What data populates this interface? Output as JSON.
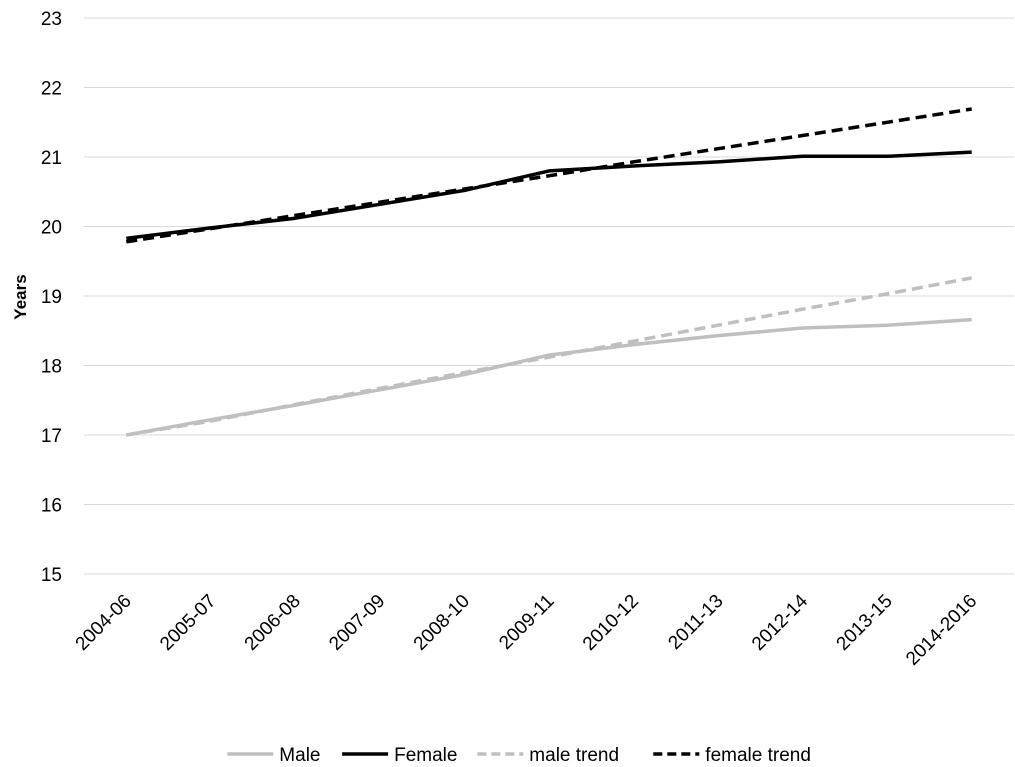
{
  "chart_data": {
    "type": "line",
    "title": "",
    "xlabel": "",
    "ylabel": "Years",
    "ylim": [
      15,
      23
    ],
    "yticks": [
      15,
      16,
      17,
      18,
      19,
      20,
      21,
      22,
      23
    ],
    "grid": true,
    "legend_position": "bottom",
    "categories": [
      "2004-06",
      "2005-07",
      "2006-08",
      "2007-09",
      "2008-10",
      "2009-11",
      "2010-12",
      "2011-13",
      "2012-14",
      "2013-15",
      "2014-2016"
    ],
    "series": [
      {
        "name": "Male",
        "color": "#bfbfbf",
        "dash": "solid",
        "values": [
          17.0,
          17.22,
          17.43,
          17.65,
          17.87,
          18.15,
          18.3,
          18.43,
          18.54,
          18.58,
          18.66
        ]
      },
      {
        "name": "Female",
        "color": "#000000",
        "dash": "solid",
        "values": [
          19.83,
          19.98,
          20.12,
          20.32,
          20.52,
          20.8,
          20.87,
          20.93,
          21.01,
          21.01,
          21.07
        ]
      },
      {
        "name": "male trend",
        "color": "#bfbfbf",
        "dash": "dashed",
        "values": [
          17.0,
          17.2,
          17.44,
          17.67,
          17.9,
          18.12,
          18.35,
          18.58,
          18.81,
          19.03,
          19.26
        ]
      },
      {
        "name": "female trend",
        "color": "#000000",
        "dash": "dashed",
        "values": [
          19.78,
          19.97,
          20.16,
          20.35,
          20.54,
          20.73,
          20.93,
          21.12,
          21.31,
          21.5,
          21.69
        ]
      }
    ]
  }
}
